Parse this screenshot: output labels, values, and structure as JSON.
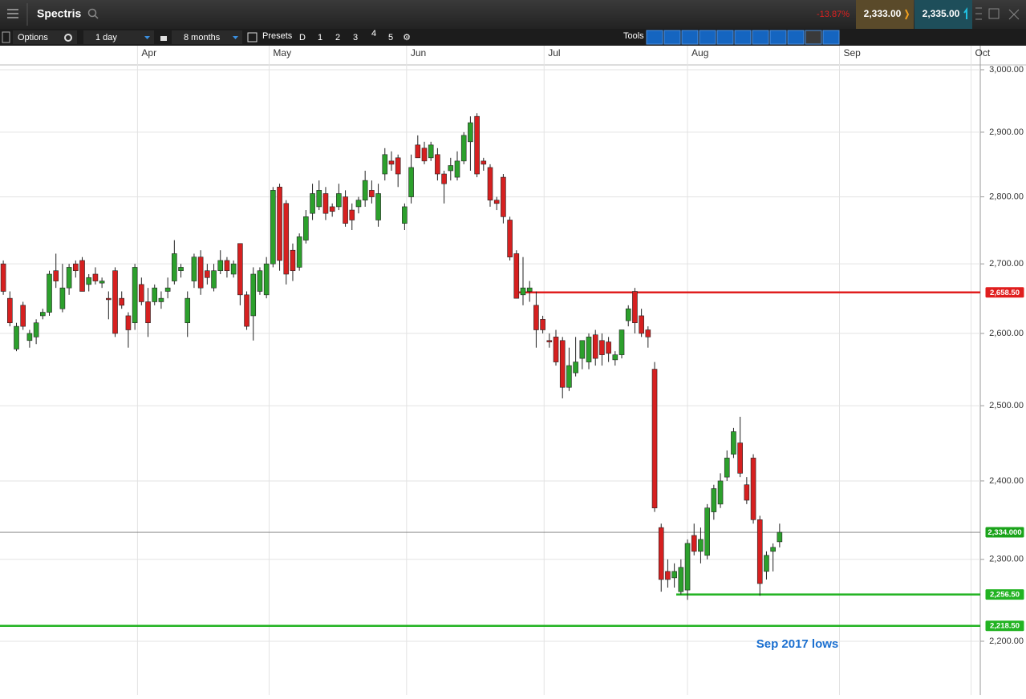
{
  "header": {
    "title": "Spectris",
    "change": "-13.87%",
    "sell": "2,333.00",
    "buy": "2,335.00"
  },
  "toolbar": {
    "options": "Options",
    "interval": "1 day",
    "range": "8 months",
    "presets": "Presets",
    "preset_buttons": [
      "D",
      "1",
      "2",
      "3",
      "4",
      "5"
    ],
    "tools": "Tools"
  },
  "chart_data": {
    "type": "candlestick",
    "log_scale": true,
    "grid": true,
    "up_color": "#2ca02c",
    "down_color": "#d62020",
    "open": [
      2700,
      2650,
      2578,
      2640,
      2590,
      2595,
      2625,
      2630,
      2690,
      2635,
      2665,
      2700,
      2705,
      2670,
      2685,
      2672,
      2650,
      2690,
      2650,
      2625,
      2615,
      2670,
      2645,
      2645,
      2645,
      2660,
      2675,
      2690,
      2615,
      2675,
      2710,
      2690,
      2665,
      2690,
      2705,
      2685,
      2730,
      2655,
      2625,
      2660,
      2655,
      2700,
      2815,
      2790,
      2720,
      2695,
      2735,
      2775,
      2785,
      2805,
      2785,
      2785,
      2800,
      2780,
      2785,
      2795,
      2810,
      2765,
      2835,
      2855,
      2860,
      2760,
      2800,
      2880,
      2875,
      2860,
      2865,
      2835,
      2840,
      2830,
      2855,
      2885,
      2925,
      2855,
      2845,
      2795,
      2830,
      2765,
      2715,
      2655,
      2660,
      2640,
      2620,
      2590,
      2595,
      2590,
      2525,
      2545,
      2565,
      2560,
      2598,
      2590,
      2588,
      2563,
      2570,
      2618,
      2660,
      2625,
      2605,
      2550,
      2340,
      2285,
      2277,
      2260,
      2262,
      2330,
      2310,
      2305,
      2360,
      2370,
      2405,
      2435,
      2450,
      2395,
      2430,
      2350,
      2285,
      2310,
      2322
    ],
    "high": [
      2705,
      2660,
      2615,
      2645,
      2605,
      2620,
      2635,
      2690,
      2715,
      2700,
      2700,
      2705,
      2710,
      2685,
      2695,
      2680,
      2660,
      2695,
      2660,
      2630,
      2700,
      2680,
      2665,
      2670,
      2660,
      2680,
      2735,
      2700,
      2660,
      2715,
      2720,
      2700,
      2700,
      2720,
      2710,
      2705,
      2730,
      2660,
      2695,
      2695,
      2710,
      2815,
      2820,
      2795,
      2730,
      2745,
      2780,
      2820,
      2825,
      2815,
      2790,
      2820,
      2810,
      2790,
      2800,
      2840,
      2825,
      2820,
      2875,
      2870,
      2865,
      2790,
      2865,
      2895,
      2885,
      2885,
      2875,
      2840,
      2860,
      2870,
      2900,
      2925,
      2930,
      2860,
      2850,
      2800,
      2835,
      2770,
      2720,
      2710,
      2675,
      2660,
      2625,
      2600,
      2605,
      2595,
      2580,
      2595,
      2590,
      2600,
      2605,
      2600,
      2595,
      2575,
      2605,
      2640,
      2665,
      2635,
      2610,
      2560,
      2345,
      2300,
      2295,
      2300,
      2325,
      2345,
      2340,
      2370,
      2395,
      2410,
      2440,
      2470,
      2485,
      2405,
      2435,
      2355,
      2310,
      2320,
      2345
    ],
    "low": [
      2655,
      2610,
      2575,
      2605,
      2580,
      2585,
      2620,
      2625,
      2665,
      2630,
      2655,
      2680,
      2660,
      2660,
      2670,
      2665,
      2620,
      2595,
      2635,
      2580,
      2605,
      2640,
      2595,
      2640,
      2635,
      2650,
      2670,
      2680,
      2595,
      2665,
      2655,
      2670,
      2660,
      2685,
      2680,
      2680,
      2640,
      2605,
      2590,
      2655,
      2650,
      2695,
      2690,
      2670,
      2675,
      2690,
      2730,
      2765,
      2780,
      2765,
      2770,
      2780,
      2755,
      2750,
      2775,
      2785,
      2790,
      2755,
      2825,
      2840,
      2815,
      2750,
      2790,
      2860,
      2850,
      2855,
      2825,
      2790,
      2825,
      2825,
      2850,
      2840,
      2830,
      2840,
      2785,
      2780,
      2760,
      2705,
      2650,
      2640,
      2645,
      2580,
      2600,
      2580,
      2555,
      2510,
      2520,
      2540,
      2550,
      2550,
      2555,
      2555,
      2560,
      2555,
      2565,
      2610,
      2600,
      2595,
      2580,
      2360,
      2260,
      2265,
      2265,
      2256.5,
      2250,
      2305,
      2295,
      2300,
      2350,
      2365,
      2400,
      2430,
      2405,
      2370,
      2345,
      2255,
      2275,
      2285,
      2315
    ],
    "close": [
      2660,
      2615,
      2610,
      2610,
      2600,
      2615,
      2630,
      2685,
      2675,
      2665,
      2695,
      2690,
      2660,
      2680,
      2675,
      2675,
      2648,
      2600,
      2640,
      2605,
      2695,
      2645,
      2615,
      2665,
      2650,
      2665,
      2715,
      2695,
      2650,
      2710,
      2665,
      2680,
      2690,
      2705,
      2690,
      2700,
      2655,
      2610,
      2685,
      2690,
      2700,
      2810,
      2705,
      2685,
      2690,
      2740,
      2770,
      2805,
      2810,
      2775,
      2778,
      2805,
      2760,
      2765,
      2795,
      2825,
      2800,
      2805,
      2865,
      2850,
      2835,
      2785,
      2845,
      2860,
      2855,
      2880,
      2835,
      2820,
      2848,
      2855,
      2895,
      2915,
      2835,
      2850,
      2795,
      2790,
      2770,
      2710,
      2650,
      2665,
      2665,
      2605,
      2605,
      2588,
      2560,
      2525,
      2555,
      2560,
      2590,
      2595,
      2565,
      2570,
      2572,
      2570,
      2605,
      2635,
      2615,
      2600,
      2595,
      2365,
      2275,
      2275,
      2285,
      2290,
      2320,
      2310,
      2325,
      2365,
      2390,
      2400,
      2430,
      2465,
      2410,
      2375,
      2350,
      2270,
      2305,
      2315,
      2334
    ],
    "xlim": [
      -0.5,
      148.5
    ],
    "xticks": [
      {
        "value": 20.4,
        "label": "Apr"
      },
      {
        "value": 40.4,
        "label": "May"
      },
      {
        "value": 61.3,
        "label": "Jun"
      },
      {
        "value": 82.2,
        "label": "Jul"
      },
      {
        "value": 104,
        "label": "Aug"
      },
      {
        "value": 127.1,
        "label": "Sep"
      },
      {
        "value": 147.1,
        "label": "Oct"
      }
    ],
    "ylim": [
      2137.7,
      3006.5
    ],
    "yticks": [
      {
        "value": 2200,
        "label": "2,200.00"
      },
      {
        "value": 2300,
        "label": "2,300.00"
      },
      {
        "value": 2400,
        "label": "2,400.00"
      },
      {
        "value": 2500,
        "label": "2,500.00"
      },
      {
        "value": 2600,
        "label": "2,600.00"
      },
      {
        "value": 2700,
        "label": "2,700.00"
      },
      {
        "value": 2800,
        "label": "2,800.00"
      },
      {
        "value": 2900,
        "label": "2,900.00"
      },
      {
        "value": 3000,
        "label": "3,000.00"
      }
    ],
    "lines": [
      {
        "value": 2658.5,
        "label": "2,658.50",
        "color": "#e01e1e"
      },
      {
        "value": 2256.5,
        "label": "2,256.50",
        "color": "#22b322"
      },
      {
        "value": 2218.5,
        "label": "2,218.50",
        "color": "#22b322"
      },
      {
        "value": 2334,
        "label": "2,334.000",
        "color": "#1aa31a"
      }
    ],
    "annotation": "Sep 2017 lows"
  }
}
